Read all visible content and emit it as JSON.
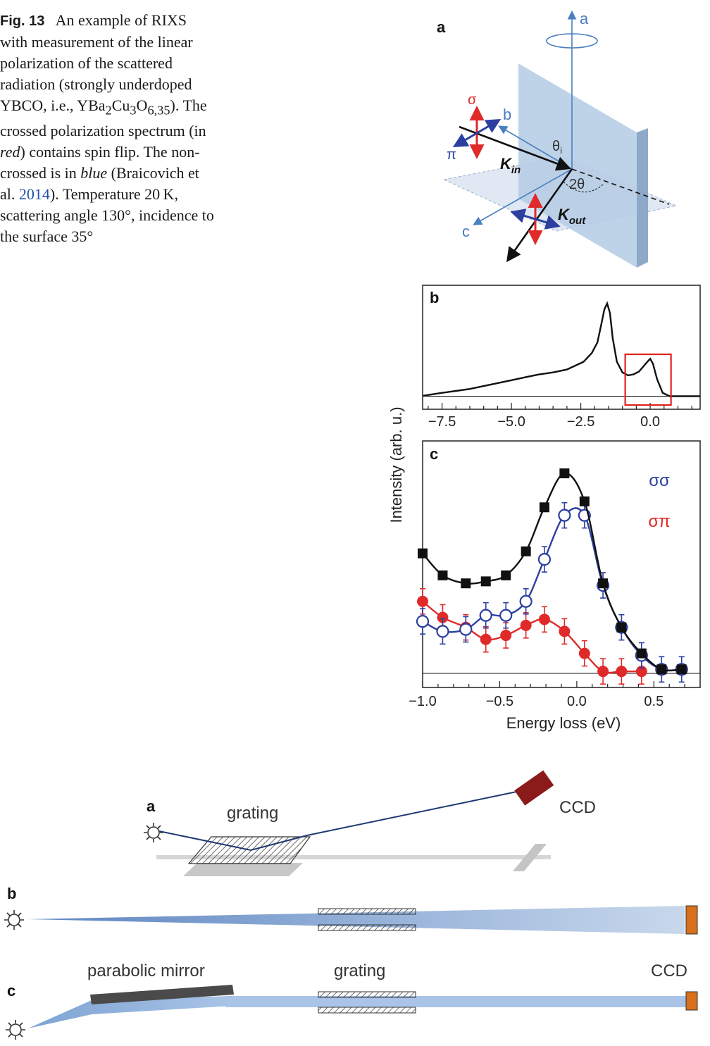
{
  "caption": {
    "label": "Fig. 13",
    "t1": "An example of RIXS with measurement of the linear polarization of the scattered radiation (strongly underdoped YBCO, i.e., YBa",
    "sub1": "2",
    "t2": "Cu",
    "sub2": "3",
    "t3": "O",
    "sub3": "6,35",
    "t4": "). The crossed polarization spectrum (in ",
    "red_word": "red",
    "t5": ") contains spin flip. The non-crossed is in ",
    "blue_word": "blue",
    "t6": " (Braicovich et al. ",
    "cite_year": "2014",
    "t7": "). Temperature 20 K, scattering angle 130°, incidence to the surface 35°"
  },
  "panel_a": {
    "label": "a",
    "axis_a": "a",
    "axis_b": "b",
    "axis_c": "c",
    "sigma": "σ",
    "pi": "π",
    "theta_i": "θ",
    "theta_i_sub": "i",
    "two_theta": "2θ",
    "k_in": "K",
    "k_in_sub": "in",
    "k_out": "K",
    "k_out_sub": "out"
  },
  "chart_data": [
    {
      "type": "line",
      "panel": "b",
      "xlim": [
        -8.2,
        1.8
      ],
      "x_ticks": [
        -7.5,
        -5.0,
        -2.5,
        0.0
      ],
      "x_tick_labels": [
        "−7.5",
        "−5.0",
        "−2.5",
        "0.0"
      ],
      "x": [
        -8.2,
        -7.5,
        -7.0,
        -6.5,
        -6.0,
        -5.5,
        -5.0,
        -4.5,
        -4.0,
        -3.5,
        -3.0,
        -2.7,
        -2.4,
        -2.1,
        -1.9,
        -1.75,
        -1.65,
        -1.55,
        -1.45,
        -1.35,
        -1.2,
        -1.0,
        -0.8,
        -0.6,
        -0.4,
        -0.25,
        -0.1,
        0.0,
        0.1,
        0.25,
        0.45,
        0.7,
        1.0,
        1.4,
        1.8
      ],
      "y": [
        0.03,
        0.06,
        0.08,
        0.1,
        0.13,
        0.16,
        0.19,
        0.22,
        0.25,
        0.27,
        0.3,
        0.34,
        0.38,
        0.47,
        0.58,
        0.78,
        0.92,
        0.98,
        0.88,
        0.62,
        0.38,
        0.27,
        0.24,
        0.25,
        0.28,
        0.33,
        0.38,
        0.41,
        0.36,
        0.2,
        0.06,
        0.025,
        0.025,
        0.025,
        0.025
      ],
      "highlight_box": [
        -0.9,
        0.75
      ],
      "highlight_color": "#e02020"
    },
    {
      "type": "line",
      "panel": "c",
      "ylabel": "Intensity (arb. u.)",
      "xlabel": "Energy loss (eV)",
      "xlim": [
        -1.0,
        0.8
      ],
      "x_ticks": [
        -1.0,
        -0.5,
        0.0,
        0.5
      ],
      "x_tick_labels": [
        "−1.0",
        "−0.5",
        "0.0",
        "0.5"
      ],
      "series": [
        {
          "name": "",
          "color": "#111111",
          "marker": "square",
          "x": [
            -1.0,
            -0.87,
            -0.72,
            -0.59,
            -0.46,
            -0.33,
            -0.21,
            -0.08,
            0.05,
            0.17,
            0.29,
            0.42,
            0.55,
            0.68
          ],
          "y": [
            0.6,
            0.49,
            0.45,
            0.46,
            0.49,
            0.61,
            0.83,
            1.0,
            0.86,
            0.45,
            0.23,
            0.1,
            0.02,
            0.02
          ]
        },
        {
          "name": "σσ",
          "color": "#2c3fa0",
          "marker": "open-circle",
          "x": [
            -1.0,
            -0.87,
            -0.72,
            -0.59,
            -0.46,
            -0.33,
            -0.21,
            -0.08,
            0.05,
            0.17,
            0.29,
            0.42,
            0.55,
            0.68
          ],
          "y": [
            0.26,
            0.21,
            0.22,
            0.29,
            0.29,
            0.36,
            0.57,
            0.79,
            0.79,
            0.44,
            0.23,
            0.09,
            0.02,
            0.02
          ]
        },
        {
          "name": "σπ",
          "color": "#e02a2a",
          "marker": "filled-circle",
          "x": [
            -1.0,
            -0.87,
            -0.72,
            -0.59,
            -0.46,
            -0.33,
            -0.21,
            -0.08,
            0.05,
            0.17,
            0.29,
            0.42
          ],
          "y": [
            0.36,
            0.28,
            0.23,
            0.17,
            0.19,
            0.24,
            0.27,
            0.21,
            0.1,
            0.01,
            0.01,
            0.01
          ]
        }
      ],
      "legend": [
        "σσ",
        "σπ"
      ],
      "legend_position": "top-right"
    }
  ],
  "fig14": {
    "a": {
      "label": "a",
      "grating": "grating",
      "ccd": "CCD"
    },
    "b": {
      "label": "b"
    },
    "c": {
      "label": "c",
      "mirror": "parabolic mirror",
      "grating": "grating",
      "ccd": "CCD"
    }
  },
  "colors": {
    "beam": "#8fb3dc",
    "ccd_dark": "#8b1a1a",
    "ccd_orange": "#d86f1a",
    "blue": "#2c3fa0",
    "red": "#e02a2a"
  }
}
